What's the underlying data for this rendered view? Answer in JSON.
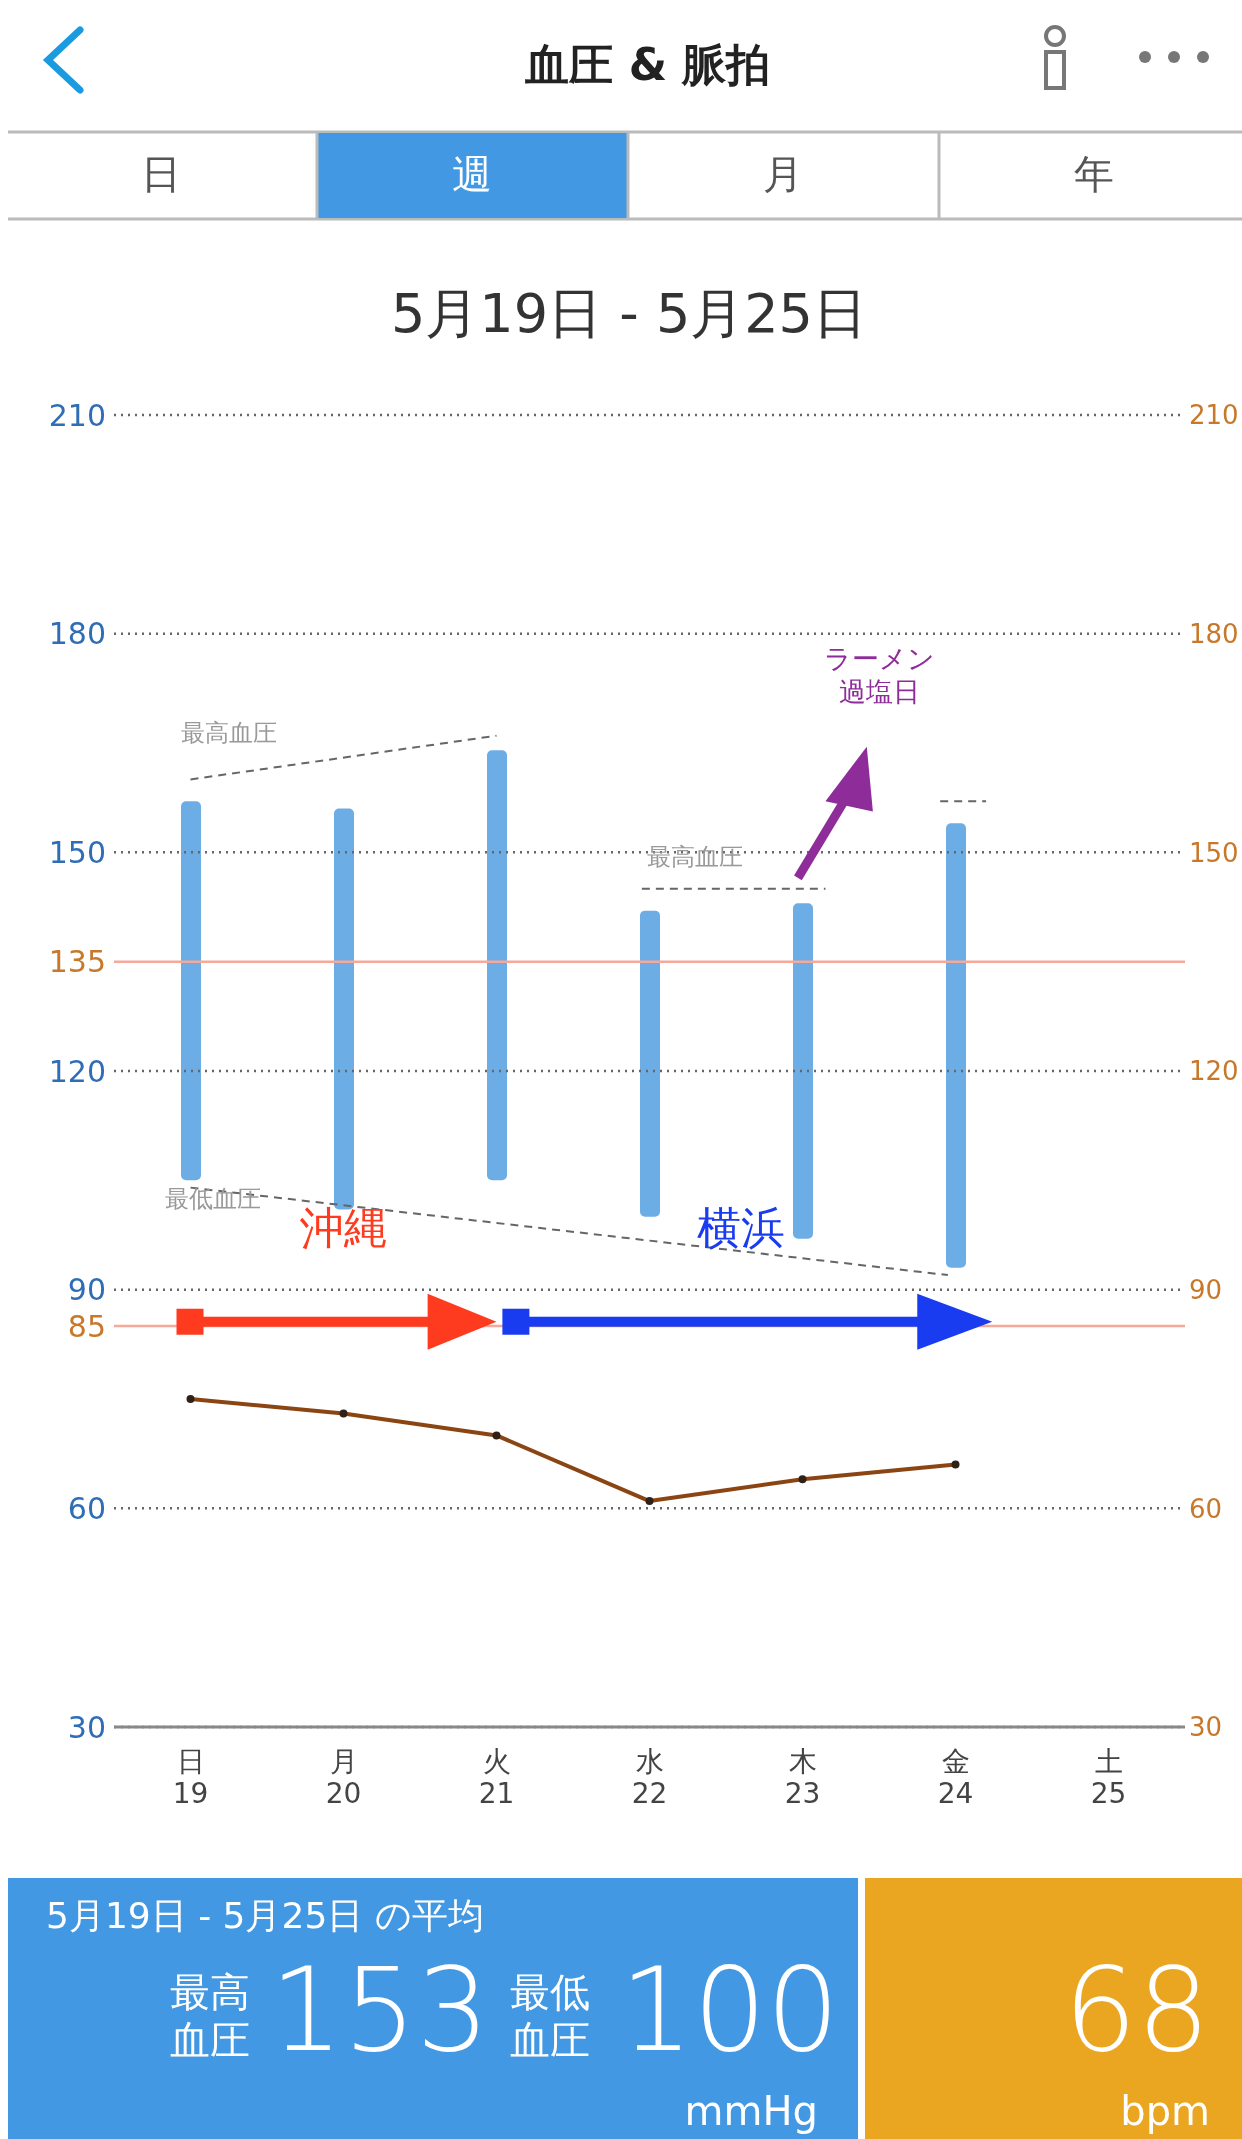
{
  "chart_data": {
    "type": "bar",
    "title": "血圧 & 脈拍",
    "subtitle": "5月19日 - 5月25日",
    "categories": [
      "日19",
      "月20",
      "火21",
      "水22",
      "木23",
      "金24",
      "土25"
    ],
    "ylim": [
      30,
      210
    ],
    "yticks": [
      30,
      60,
      90,
      120,
      150,
      180,
      210
    ],
    "y2lim": [
      30,
      210
    ],
    "y2ticks": [
      30,
      60,
      90,
      120,
      150,
      180,
      210
    ],
    "series": [
      {
        "color": "#6cade6",
        "base": [
          105,
          101,
          105,
          100,
          97,
          93,
          null
        ],
        "values": [
          52,
          55,
          59,
          42,
          46,
          61,
          null
        ]
      },
      {
        "type": "line",
        "color": "#8b4513",
        "values": [
          75,
          73,
          70,
          61,
          64,
          66,
          null
        ]
      }
    ],
    "ref_lines": [
      {
        "axis": "y",
        "value": 135,
        "label": "135",
        "color": "#f4a99a"
      },
      {
        "axis": "y",
        "value": 85,
        "label": "85",
        "color": "#f4a99a"
      }
    ],
    "grid": "y",
    "marker": "circle",
    "line_style": "solid",
    "annotations": [
      "日",
      "週",
      "月",
      "年",
      "最高血圧",
      "最高血圧",
      "最低血圧",
      "沖縄",
      "横浜",
      "ラーメン過塩日",
      "5月19日 - 5月25日 の平均",
      "最高血圧",
      "153",
      "最低血圧",
      "100",
      "mmHg",
      "68",
      "bpm"
    ]
  }
}
